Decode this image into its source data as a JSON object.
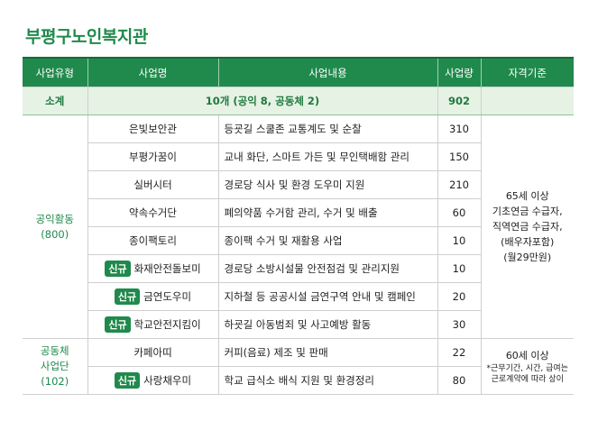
{
  "title": "부평구노인복지관",
  "table": {
    "headers": [
      "사업유형",
      "사업명",
      "사업내용",
      "사업량",
      "자격기준"
    ],
    "subtotal": {
      "label": "소계",
      "summary": "10개 (공익 8, 공동체 2)",
      "amount": 902
    },
    "groups": [
      {
        "type": [
          "공익활동",
          "(800)"
        ],
        "criteria": [
          "65세 이상",
          "기초연금 수급자,",
          "직역연금 수급자,",
          "(배우자포함)",
          "(월29만원)"
        ],
        "rows": [
          {
            "name": "은빛보안관",
            "content": "등굣길 스쿨존 교통계도 및 순찰",
            "amount": 310
          },
          {
            "name": "부평가꿈이",
            "content": "교내 화단, 스마트 가든 및 무인택배함 관리",
            "amount": 150
          },
          {
            "name": "실버시터",
            "content": "경로당 식사 및 환경 도우미 지원",
            "amount": 210
          },
          {
            "name": "약속수거단",
            "content": "폐의약품 수거함 관리, 수거 및 배출",
            "amount": 60
          },
          {
            "name": "종이팩토리",
            "content": "종이팩 수거 및 재활용 사업",
            "amount": 10
          },
          {
            "badge": "신규",
            "name": "화재안전돌보미",
            "content": "경로당 소방시설물 안전점검 및 관리지원",
            "amount": 10
          },
          {
            "badge": "신규",
            "name": "금연도우미",
            "content": "지하철 등 공공시설 금연구역 안내 및 캠페인",
            "amount": 20
          },
          {
            "badge": "신규",
            "name": "학교안전지킴이",
            "content": "하굣길 아동범죄 및 사고예방 활동",
            "amount": 30
          }
        ]
      },
      {
        "type": [
          "공동체",
          "사업단",
          "(102)"
        ],
        "criteria": [
          "60세 이상"
        ],
        "note": [
          "*근무기간, 시간, 급여는",
          "근로계약에 따라 상이"
        ],
        "rows": [
          {
            "name": "카페아띠",
            "content": "커피(음료) 제조 및 판매",
            "amount": 22
          },
          {
            "badge": "신규",
            "name": "사랑채우미",
            "content": "학교 급식소 배식 지원 및 환경정리",
            "amount": 80
          }
        ]
      }
    ]
  }
}
